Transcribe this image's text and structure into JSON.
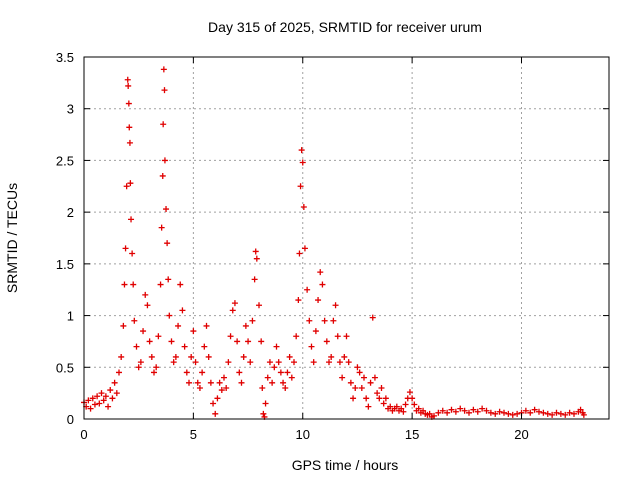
{
  "chart_data": {
    "type": "scatter",
    "title": "Day 315 of 2025, SRMTID for receiver urum",
    "xlabel": "GPS time / hours",
    "ylabel": "SRMTID / TECUs",
    "xlim": [
      0,
      24
    ],
    "ylim": [
      0,
      3.5
    ],
    "xticks": [
      0,
      5,
      10,
      15,
      20
    ],
    "xtick_labels": [
      "0",
      "5",
      "10",
      "15",
      "20"
    ],
    "yticks": [
      0,
      0.5,
      1,
      1.5,
      2,
      2.5,
      3,
      3.5
    ],
    "ytick_labels": [
      "0",
      "0.5",
      "1",
      "1.5",
      "2",
      "2.5",
      "3",
      "3.5"
    ],
    "grid": true,
    "marker": "+",
    "colors": {
      "series": "#e00000",
      "grid": "#a0a0a0",
      "axis": "#000000"
    },
    "series": [
      {
        "name": "SRMTID",
        "points": [
          [
            0.0,
            0.16
          ],
          [
            0.1,
            0.12
          ],
          [
            0.2,
            0.18
          ],
          [
            0.3,
            0.1
          ],
          [
            0.4,
            0.2
          ],
          [
            0.5,
            0.14
          ],
          [
            0.6,
            0.22
          ],
          [
            0.7,
            0.15
          ],
          [
            0.8,
            0.25
          ],
          [
            0.9,
            0.18
          ],
          [
            1.0,
            0.22
          ],
          [
            1.1,
            0.12
          ],
          [
            1.2,
            0.28
          ],
          [
            1.3,
            0.2
          ],
          [
            1.4,
            0.35
          ],
          [
            1.5,
            0.25
          ],
          [
            1.6,
            0.45
          ],
          [
            1.7,
            0.6
          ],
          [
            1.8,
            0.9
          ],
          [
            1.85,
            1.3
          ],
          [
            1.9,
            1.65
          ],
          [
            1.95,
            2.25
          ],
          [
            2.0,
            3.28
          ],
          [
            2.02,
            3.22
          ],
          [
            2.05,
            3.05
          ],
          [
            2.07,
            2.82
          ],
          [
            2.1,
            2.67
          ],
          [
            2.12,
            2.28
          ],
          [
            2.15,
            1.93
          ],
          [
            2.2,
            1.6
          ],
          [
            2.25,
            1.3
          ],
          [
            2.3,
            0.95
          ],
          [
            2.4,
            0.7
          ],
          [
            2.5,
            0.5
          ],
          [
            2.6,
            0.55
          ],
          [
            2.7,
            0.85
          ],
          [
            2.8,
            1.2
          ],
          [
            2.9,
            1.1
          ],
          [
            3.0,
            0.75
          ],
          [
            3.1,
            0.6
          ],
          [
            3.2,
            0.45
          ],
          [
            3.3,
            0.5
          ],
          [
            3.4,
            0.8
          ],
          [
            3.5,
            1.3
          ],
          [
            3.55,
            1.85
          ],
          [
            3.6,
            2.35
          ],
          [
            3.62,
            2.85
          ],
          [
            3.65,
            3.38
          ],
          [
            3.68,
            3.18
          ],
          [
            3.7,
            2.5
          ],
          [
            3.75,
            2.03
          ],
          [
            3.8,
            1.7
          ],
          [
            3.85,
            1.35
          ],
          [
            3.9,
            1.0
          ],
          [
            4.0,
            0.75
          ],
          [
            4.1,
            0.55
          ],
          [
            4.2,
            0.6
          ],
          [
            4.3,
            0.9
          ],
          [
            4.4,
            1.3
          ],
          [
            4.5,
            1.05
          ],
          [
            4.6,
            0.7
          ],
          [
            4.7,
            0.45
          ],
          [
            4.8,
            0.35
          ],
          [
            4.9,
            0.6
          ],
          [
            5.0,
            0.85
          ],
          [
            5.1,
            0.55
          ],
          [
            5.2,
            0.35
          ],
          [
            5.3,
            0.3
          ],
          [
            5.4,
            0.45
          ],
          [
            5.5,
            0.7
          ],
          [
            5.6,
            0.9
          ],
          [
            5.7,
            0.6
          ],
          [
            5.8,
            0.35
          ],
          [
            5.9,
            0.15
          ],
          [
            6.0,
            0.05
          ],
          [
            6.1,
            0.2
          ],
          [
            6.2,
            0.35
          ],
          [
            6.3,
            0.28
          ],
          [
            6.4,
            0.4
          ],
          [
            6.5,
            0.3
          ],
          [
            6.6,
            0.55
          ],
          [
            6.7,
            0.8
          ],
          [
            6.8,
            1.05
          ],
          [
            6.9,
            1.12
          ],
          [
            7.0,
            0.75
          ],
          [
            7.1,
            0.45
          ],
          [
            7.2,
            0.35
          ],
          [
            7.3,
            0.6
          ],
          [
            7.4,
            0.9
          ],
          [
            7.5,
            0.75
          ],
          [
            7.6,
            0.55
          ],
          [
            7.7,
            0.95
          ],
          [
            7.8,
            1.35
          ],
          [
            7.85,
            1.62
          ],
          [
            7.9,
            1.55
          ],
          [
            8.0,
            1.1
          ],
          [
            8.1,
            0.75
          ],
          [
            8.15,
            0.3
          ],
          [
            8.2,
            0.05
          ],
          [
            8.25,
            0.02
          ],
          [
            8.3,
            0.15
          ],
          [
            8.4,
            0.4
          ],
          [
            8.5,
            0.55
          ],
          [
            8.6,
            0.35
          ],
          [
            8.7,
            0.5
          ],
          [
            8.8,
            0.7
          ],
          [
            8.9,
            0.55
          ],
          [
            9.0,
            0.45
          ],
          [
            9.1,
            0.35
          ],
          [
            9.2,
            0.3
          ],
          [
            9.3,
            0.45
          ],
          [
            9.4,
            0.6
          ],
          [
            9.5,
            0.4
          ],
          [
            9.6,
            0.55
          ],
          [
            9.7,
            0.8
          ],
          [
            9.8,
            1.15
          ],
          [
            9.85,
            1.6
          ],
          [
            9.9,
            2.25
          ],
          [
            9.95,
            2.6
          ],
          [
            10.0,
            2.48
          ],
          [
            10.05,
            2.05
          ],
          [
            10.1,
            1.65
          ],
          [
            10.2,
            1.25
          ],
          [
            10.3,
            0.95
          ],
          [
            10.4,
            0.7
          ],
          [
            10.5,
            0.55
          ],
          [
            10.6,
            0.85
          ],
          [
            10.7,
            1.15
          ],
          [
            10.8,
            1.42
          ],
          [
            10.9,
            1.3
          ],
          [
            11.0,
            0.95
          ],
          [
            11.1,
            0.75
          ],
          [
            11.2,
            0.55
          ],
          [
            11.3,
            0.6
          ],
          [
            11.4,
            0.95
          ],
          [
            11.5,
            1.1
          ],
          [
            11.6,
            0.8
          ],
          [
            11.7,
            0.55
          ],
          [
            11.8,
            0.4
          ],
          [
            11.9,
            0.6
          ],
          [
            12.0,
            0.8
          ],
          [
            12.1,
            0.55
          ],
          [
            12.2,
            0.35
          ],
          [
            12.3,
            0.2
          ],
          [
            12.4,
            0.3
          ],
          [
            12.5,
            0.5
          ],
          [
            12.6,
            0.45
          ],
          [
            12.7,
            0.3
          ],
          [
            12.8,
            0.4
          ],
          [
            12.9,
            0.2
          ],
          [
            13.0,
            0.12
          ],
          [
            13.1,
            0.35
          ],
          [
            13.2,
            0.98
          ],
          [
            13.3,
            0.4
          ],
          [
            13.4,
            0.25
          ],
          [
            13.5,
            0.2
          ],
          [
            13.6,
            0.3
          ],
          [
            13.7,
            0.15
          ],
          [
            13.8,
            0.2
          ],
          [
            13.9,
            0.1
          ],
          [
            14.0,
            0.12
          ],
          [
            14.1,
            0.08
          ],
          [
            14.2,
            0.1
          ],
          [
            14.3,
            0.12
          ],
          [
            14.4,
            0.08
          ],
          [
            14.5,
            0.1
          ],
          [
            14.6,
            0.07
          ],
          [
            14.7,
            0.14
          ],
          [
            14.8,
            0.2
          ],
          [
            14.9,
            0.26
          ],
          [
            15.0,
            0.2
          ],
          [
            15.1,
            0.14
          ],
          [
            15.2,
            0.08
          ],
          [
            15.3,
            0.1
          ],
          [
            15.4,
            0.06
          ],
          [
            15.5,
            0.08
          ],
          [
            15.6,
            0.05
          ],
          [
            15.7,
            0.04
          ],
          [
            15.8,
            0.05
          ],
          [
            15.9,
            0.02
          ],
          [
            16.0,
            0.03
          ],
          [
            16.2,
            0.06
          ],
          [
            16.4,
            0.08
          ],
          [
            16.6,
            0.06
          ],
          [
            16.8,
            0.09
          ],
          [
            17.0,
            0.07
          ],
          [
            17.2,
            0.1
          ],
          [
            17.4,
            0.08
          ],
          [
            17.6,
            0.06
          ],
          [
            17.8,
            0.09
          ],
          [
            18.0,
            0.07
          ],
          [
            18.2,
            0.1
          ],
          [
            18.4,
            0.08
          ],
          [
            18.6,
            0.06
          ],
          [
            18.8,
            0.05
          ],
          [
            19.0,
            0.07
          ],
          [
            19.2,
            0.06
          ],
          [
            19.4,
            0.05
          ],
          [
            19.6,
            0.04
          ],
          [
            19.8,
            0.05
          ],
          [
            20.0,
            0.06
          ],
          [
            20.2,
            0.08
          ],
          [
            20.4,
            0.06
          ],
          [
            20.6,
            0.09
          ],
          [
            20.8,
            0.07
          ],
          [
            21.0,
            0.06
          ],
          [
            21.2,
            0.05
          ],
          [
            21.4,
            0.04
          ],
          [
            21.6,
            0.06
          ],
          [
            21.8,
            0.05
          ],
          [
            22.0,
            0.04
          ],
          [
            22.2,
            0.06
          ],
          [
            22.4,
            0.05
          ],
          [
            22.6,
            0.07
          ],
          [
            22.7,
            0.09
          ],
          [
            22.8,
            0.06
          ],
          [
            22.85,
            0.04
          ]
        ]
      }
    ]
  }
}
